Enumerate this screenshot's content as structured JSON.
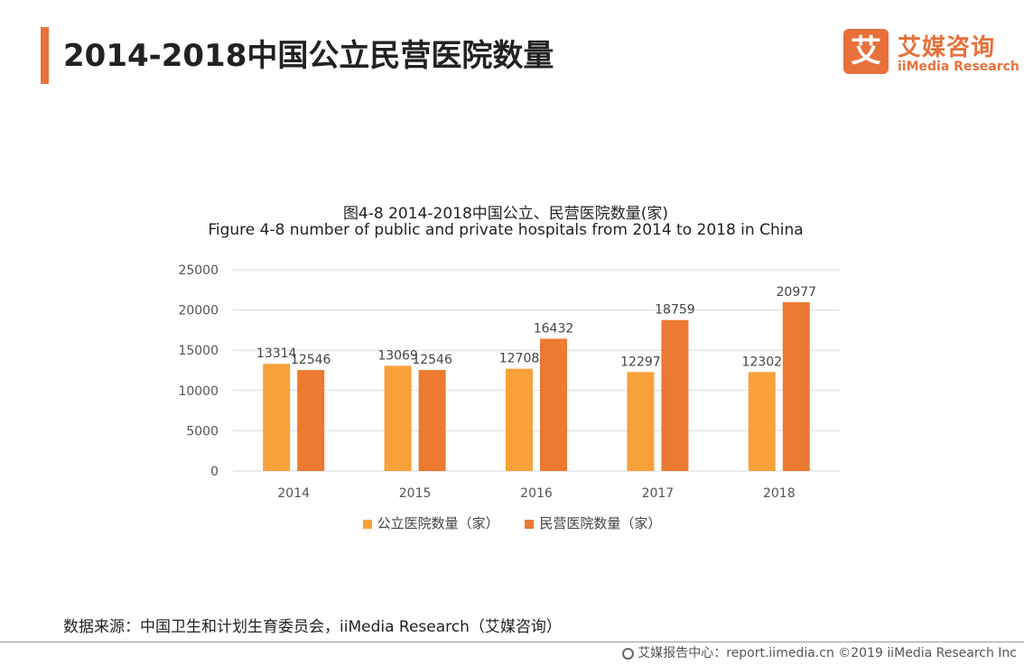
{
  "header": {
    "title": "2014-2018中国公立民营医院数量",
    "accent_color": "#e8703a"
  },
  "logo": {
    "mark": "艾",
    "name_cn": "艾媒咨询",
    "name_en": "iiMedia Research"
  },
  "chart_data": {
    "type": "bar",
    "title": "图4-8  2014-2018中国公立、民营医院数量(家)",
    "subtitle": "Figure 4-8 number of public and private hospitals from 2014 to 2018 in China",
    "categories": [
      "2014",
      "2015",
      "2016",
      "2017",
      "2018"
    ],
    "series": [
      {
        "name": "公立医院数量（家）",
        "color": "#f8a13a",
        "values": [
          13314,
          13069,
          12708,
          12297,
          12302
        ]
      },
      {
        "name": "民营医院数量（家）",
        "color": "#ec7a30",
        "values": [
          12546,
          12546,
          16432,
          18759,
          20977
        ]
      }
    ],
    "ylim": [
      0,
      25000
    ],
    "yticks": [
      0,
      5000,
      10000,
      15000,
      20000,
      25000
    ],
    "grid": true,
    "legend_position": "bottom"
  },
  "footer": {
    "source": "数据来源：中国卫生和计划生育委员会，iiMedia Research（艾媒咨询）",
    "copyright": "艾媒报告中心：report.iimedia.cn  ©2019  iiMedia Research Inc"
  }
}
